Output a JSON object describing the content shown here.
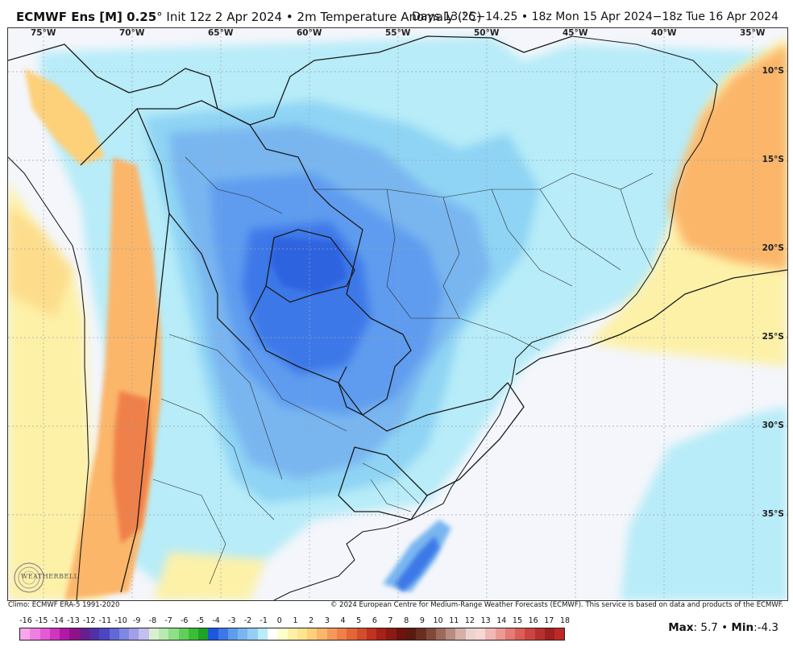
{
  "header": {
    "model": "ECMWF Ens [M] 0.25",
    "degree_symbol": "°",
    "init": "Init 12z 2 Apr 2024",
    "bullet": "•",
    "variable": "2m Temperature Anomaly (°C)",
    "valid": "Days 13.25−14.25 • 18z Mon 15 Apr 2024−18z Tue 16 Apr 2024"
  },
  "map": {
    "longitude_labels": [
      "75°W",
      "70°W",
      "65°W",
      "60°W",
      "55°W",
      "50°W",
      "45°W",
      "40°W",
      "35°W"
    ],
    "latitude_labels": [
      "10°S",
      "15°S",
      "20°S",
      "25°S",
      "30°S",
      "35°S"
    ],
    "colors": {
      "ocean_neutral": "#f4f6fb",
      "light_cyan": "#b7ecf8",
      "pale_blue": "#8fd4f4",
      "mid_blue": "#79b6f0",
      "blue": "#5e9cef",
      "deep_blue": "#3e78e8",
      "strong_blue": "#2f64e0",
      "pale_yellow": "#fdf1a8",
      "light_orange": "#fdd07a",
      "orange": "#fbb66a",
      "red_orange": "#f08048",
      "border_line": "#1a1a1a"
    }
  },
  "footer": {
    "climo": "Climo: ECMWF ERA-5 1991-2020",
    "copyright": "© 2024 European Centre for Medium-Range Weather Forecasts (ECMWF). This service is based on data and products of the ECMWF.",
    "logo_text": "WEATHERBELL",
    "max_label": "Max",
    "max_value": "5.7",
    "separator": "•",
    "min_label": "Min",
    "min_value": "-4.3"
  },
  "colorbar": {
    "ticks": [
      "-16",
      "-15",
      "-14",
      "-13",
      "-12",
      "-11",
      "-10",
      "-9",
      "-8",
      "-7",
      "-6",
      "-5",
      "-4",
      "-3",
      "-2",
      "-1",
      "0",
      "1",
      "2",
      "3",
      "4",
      "5",
      "6",
      "7",
      "8",
      "9",
      "10",
      "11",
      "12",
      "13",
      "14",
      "15",
      "16",
      "17",
      "18"
    ],
    "colors": [
      "#f7a6ec",
      "#ef7fe2",
      "#e35ad4",
      "#cf36be",
      "#b219a8",
      "#8e1289",
      "#6a1d8c",
      "#5130a8",
      "#4b47c4",
      "#6169d6",
      "#7f88e1",
      "#a19fe9",
      "#c3bff0",
      "#d8f0d0",
      "#b8eab0",
      "#8fdf86",
      "#62cf5a",
      "#3bbd35",
      "#1ea325",
      "#1c58e0",
      "#3e78e8",
      "#5e9cef",
      "#79b6f0",
      "#95cdf4",
      "#b7ecf8",
      "#ffffff",
      "#ffffcc",
      "#fdf1a8",
      "#fde58f",
      "#fdd07a",
      "#fbb66a",
      "#f7985a",
      "#f08048",
      "#e46638",
      "#d44c2a",
      "#c13220",
      "#a72117",
      "#8b1a12",
      "#6d140e",
      "#5a1a10",
      "#6b2d1e",
      "#82493a",
      "#9c6a5c",
      "#b88c80",
      "#d4b0a6",
      "#ecd4ce",
      "#f7d7d4",
      "#f3b8b4",
      "#ee9a94",
      "#e67a74",
      "#dc5e58",
      "#cc4440",
      "#b8302e",
      "#a01f20",
      "#bd2a26"
    ]
  }
}
